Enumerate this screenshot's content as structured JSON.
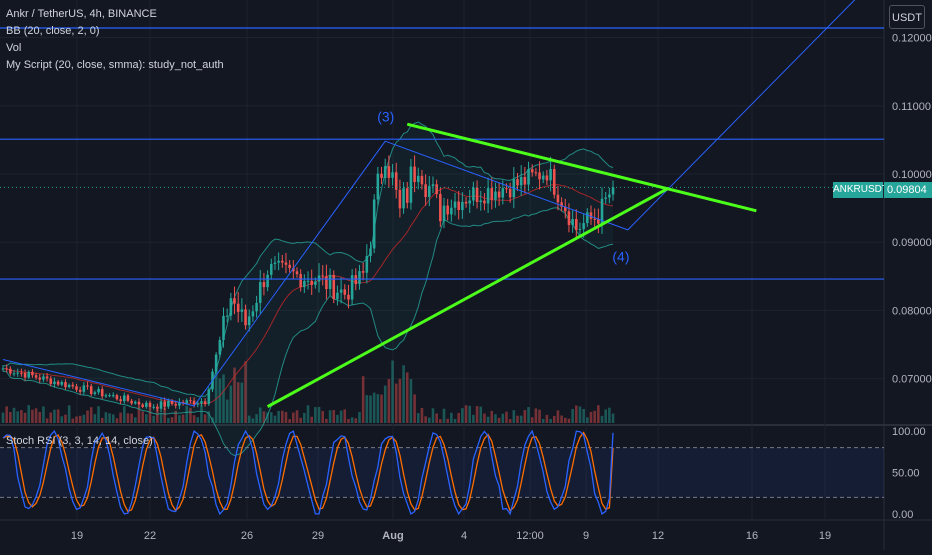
{
  "header": {
    "title_line": "Ankr / TetherUS, 4h, BINANCE",
    "indicators": [
      "BB (20, close, 2, 0)",
      "Vol",
      "My Script (20, close, smma): study_not_auth"
    ]
  },
  "currency_button": "USDT",
  "symbol_tag": "ANKRUSDT",
  "last_price": "0.09804",
  "stoch_label": "Stoch RSI (3, 3, 14, 14, close)",
  "colors": {
    "background": "#131722",
    "up": "#26a69a",
    "down": "#ef5350",
    "trendline": "#4cff1a",
    "horizontal": "#2962ff",
    "wave": "#2962ff",
    "bb": "#26a69a",
    "stoch_k": "#2962ff",
    "stoch_d": "#ff6d00"
  },
  "chart_data": [
    {
      "type": "candlestick",
      "title": "Ankr / TetherUS, 4h, BINANCE",
      "xticks": [
        "19",
        "22",
        "26",
        "29",
        "Aug",
        "4",
        "12:00",
        "9",
        "12",
        "16",
        "19"
      ],
      "yticks": [
        "0.12000",
        "0.11000",
        "0.10000",
        "0.09000",
        "0.08000",
        "0.07000"
      ],
      "ylim": [
        0.0635,
        0.1255
      ],
      "horizontal_levels": [
        0.1214,
        0.1051,
        0.0846
      ],
      "wave_labels": [
        {
          "text": "(3)",
          "price": 0.1077
        },
        {
          "text": "(4)",
          "price": 0.0872
        }
      ],
      "triangle_upper": [
        {
          "start": 0.1073
        },
        {
          "end": 0.0946
        }
      ],
      "triangle_lower": [
        {
          "start": 0.0659
        },
        {
          "end": 0.0979
        }
      ],
      "ohlc_keyframes": [
        {
          "bar": 0,
          "price": 0.0715
        },
        {
          "bar": 40,
          "price": 0.066
        },
        {
          "bar": 55,
          "price": 0.0668
        },
        {
          "bar": 62,
          "price": 0.082
        },
        {
          "bar": 66,
          "price": 0.078
        },
        {
          "bar": 72,
          "price": 0.086
        },
        {
          "bar": 86,
          "price": 0.0845
        },
        {
          "bar": 93,
          "price": 0.0825
        },
        {
          "bar": 98,
          "price": 0.085
        },
        {
          "bar": 104,
          "price": 0.104
        },
        {
          "bar": 108,
          "price": 0.094
        },
        {
          "bar": 113,
          "price": 0.1025
        },
        {
          "bar": 118,
          "price": 0.095
        },
        {
          "bar": 128,
          "price": 0.097
        },
        {
          "bar": 140,
          "price": 0.0985
        },
        {
          "bar": 148,
          "price": 0.1005
        },
        {
          "bar": 156,
          "price": 0.092
        },
        {
          "bar": 162,
          "price": 0.094
        },
        {
          "bar": 166,
          "price": 0.098
        }
      ]
    },
    {
      "type": "line",
      "title": "Stoch RSI (3, 3, 14, 14, close)",
      "yticks": [
        "100.00",
        "50.00",
        "0.00"
      ],
      "ylim": [
        -5,
        105
      ],
      "bands": [
        80,
        20
      ],
      "series": [
        {
          "name": "K",
          "cycle_period_bars": 13,
          "end_value": 98
        },
        {
          "name": "D",
          "cycle_period_bars": 13,
          "end_value": 80
        }
      ]
    }
  ]
}
